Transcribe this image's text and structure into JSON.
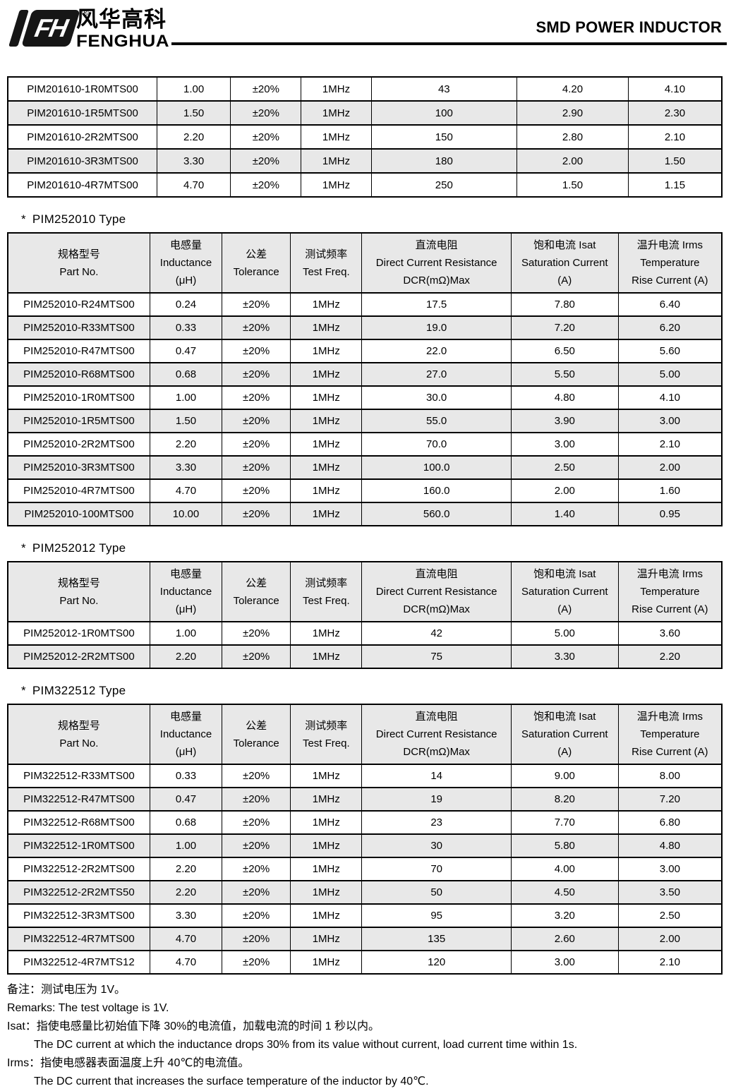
{
  "header": {
    "brand_cn": "风华高科",
    "brand_en": "FENGHUA",
    "logo_monogram": "FH",
    "registered_mark": "®",
    "page_title": "SMD POWER INDUCTOR"
  },
  "table_columns": {
    "part": {
      "cn": "规格型号",
      "en": "Part No."
    },
    "inductance": {
      "cn": "电感量",
      "en": "Inductance",
      "unit": "(μH)"
    },
    "tolerance": {
      "cn": "公差",
      "en": "Tolerance"
    },
    "test_freq": {
      "cn": "测试频率",
      "en": "Test Freq."
    },
    "dcr": {
      "cn": "直流电阻",
      "en": "Direct Current Resistance",
      "unit": "DCR(mΩ)Max"
    },
    "isat": {
      "cn": "饱和电流  Isat",
      "en": "Saturation Current",
      "unit": "(A)"
    },
    "irms": {
      "cn": "温升电流  Irms",
      "en": "Temperature",
      "unit": "Rise Current (A)"
    }
  },
  "top_table": {
    "rows": [
      [
        "PIM201610-1R0MTS00",
        "1.00",
        "±20%",
        "1MHz",
        "43",
        "4.20",
        "4.10"
      ],
      [
        "PIM201610-1R5MTS00",
        "1.50",
        "±20%",
        "1MHz",
        "100",
        "2.90",
        "2.30"
      ],
      [
        "PIM201610-2R2MTS00",
        "2.20",
        "±20%",
        "1MHz",
        "150",
        "2.80",
        "2.10"
      ],
      [
        "PIM201610-3R3MTS00",
        "3.30",
        "±20%",
        "1MHz",
        "180",
        "2.00",
        "1.50"
      ],
      [
        "PIM201610-4R7MTS00",
        "4.70",
        "±20%",
        "1MHz",
        "250",
        "1.50",
        "1.15"
      ]
    ]
  },
  "sections": [
    {
      "title": "PIM252010 Type",
      "marker": "*",
      "rows": [
        [
          "PIM252010-R24MTS00",
          "0.24",
          "±20%",
          "1MHz",
          "17.5",
          "7.80",
          "6.40"
        ],
        [
          "PIM252010-R33MTS00",
          "0.33",
          "±20%",
          "1MHz",
          "19.0",
          "7.20",
          "6.20"
        ],
        [
          "PIM252010-R47MTS00",
          "0.47",
          "±20%",
          "1MHz",
          "22.0",
          "6.50",
          "5.60"
        ],
        [
          "PIM252010-R68MTS00",
          "0.68",
          "±20%",
          "1MHz",
          "27.0",
          "5.50",
          "5.00"
        ],
        [
          "PIM252010-1R0MTS00",
          "1.00",
          "±20%",
          "1MHz",
          "30.0",
          "4.80",
          "4.10"
        ],
        [
          "PIM252010-1R5MTS00",
          "1.50",
          "±20%",
          "1MHz",
          "55.0",
          "3.90",
          "3.00"
        ],
        [
          "PIM252010-2R2MTS00",
          "2.20",
          "±20%",
          "1MHz",
          "70.0",
          "3.00",
          "2.10"
        ],
        [
          "PIM252010-3R3MTS00",
          "3.30",
          "±20%",
          "1MHz",
          "100.0",
          "2.50",
          "2.00"
        ],
        [
          "PIM252010-4R7MTS00",
          "4.70",
          "±20%",
          "1MHz",
          "160.0",
          "2.00",
          "1.60"
        ],
        [
          "PIM252010-100MTS00",
          "10.00",
          "±20%",
          "1MHz",
          "560.0",
          "1.40",
          "0.95"
        ]
      ]
    },
    {
      "title": "PIM252012 Type",
      "marker": "*",
      "rows": [
        [
          "PIM252012-1R0MTS00",
          "1.00",
          "±20%",
          "1MHz",
          "42",
          "5.00",
          "3.60"
        ],
        [
          "PIM252012-2R2MTS00",
          "2.20",
          "±20%",
          "1MHz",
          "75",
          "3.30",
          "2.20"
        ]
      ]
    },
    {
      "title": "PIM322512 Type",
      "marker": "*",
      "rows": [
        [
          "PIM322512-R33MTS00",
          "0.33",
          "±20%",
          "1MHz",
          "14",
          "9.00",
          "8.00"
        ],
        [
          "PIM322512-R47MTS00",
          "0.47",
          "±20%",
          "1MHz",
          "19",
          "8.20",
          "7.20"
        ],
        [
          "PIM322512-R68MTS00",
          "0.68",
          "±20%",
          "1MHz",
          "23",
          "7.70",
          "6.80"
        ],
        [
          "PIM322512-1R0MTS00",
          "1.00",
          "±20%",
          "1MHz",
          "30",
          "5.80",
          "4.80"
        ],
        [
          "PIM322512-2R2MTS00",
          "2.20",
          "±20%",
          "1MHz",
          "70",
          "4.00",
          "3.00"
        ],
        [
          "PIM322512-2R2MTS50",
          "2.20",
          "±20%",
          "1MHz",
          "50",
          "4.50",
          "3.50"
        ],
        [
          "PIM322512-3R3MTS00",
          "3.30",
          "±20%",
          "1MHz",
          "95",
          "3.20",
          "2.50"
        ],
        [
          "PIM322512-4R7MTS00",
          "4.70",
          "±20%",
          "1MHz",
          "135",
          "2.60",
          "2.00"
        ],
        [
          "PIM322512-4R7MTS12",
          "4.70",
          "±20%",
          "1MHz",
          "120",
          "3.00",
          "2.10"
        ]
      ]
    }
  ],
  "remarks": {
    "note_cn": "备注：测试电压为 1V。",
    "note_en": "Remarks: The test voltage is 1V.",
    "isat_cn": "Isat：指使电感量比初始值下降 30%的电流值，加载电流的时间 1 秒以内。",
    "isat_en": "The DC current at which the inductance drops 30% from its value without current, load current time within 1s.",
    "irms_cn": "Irms：指使电感器表面温度上升 40℃的电流值。",
    "irms_en": "The DC current that increases the surface temperature of the inductor by 40℃."
  },
  "colors": {
    "row_alt": "#e8e8e8",
    "header_bg": "#e8e8e8",
    "border": "#000000",
    "ink": "#000000"
  }
}
